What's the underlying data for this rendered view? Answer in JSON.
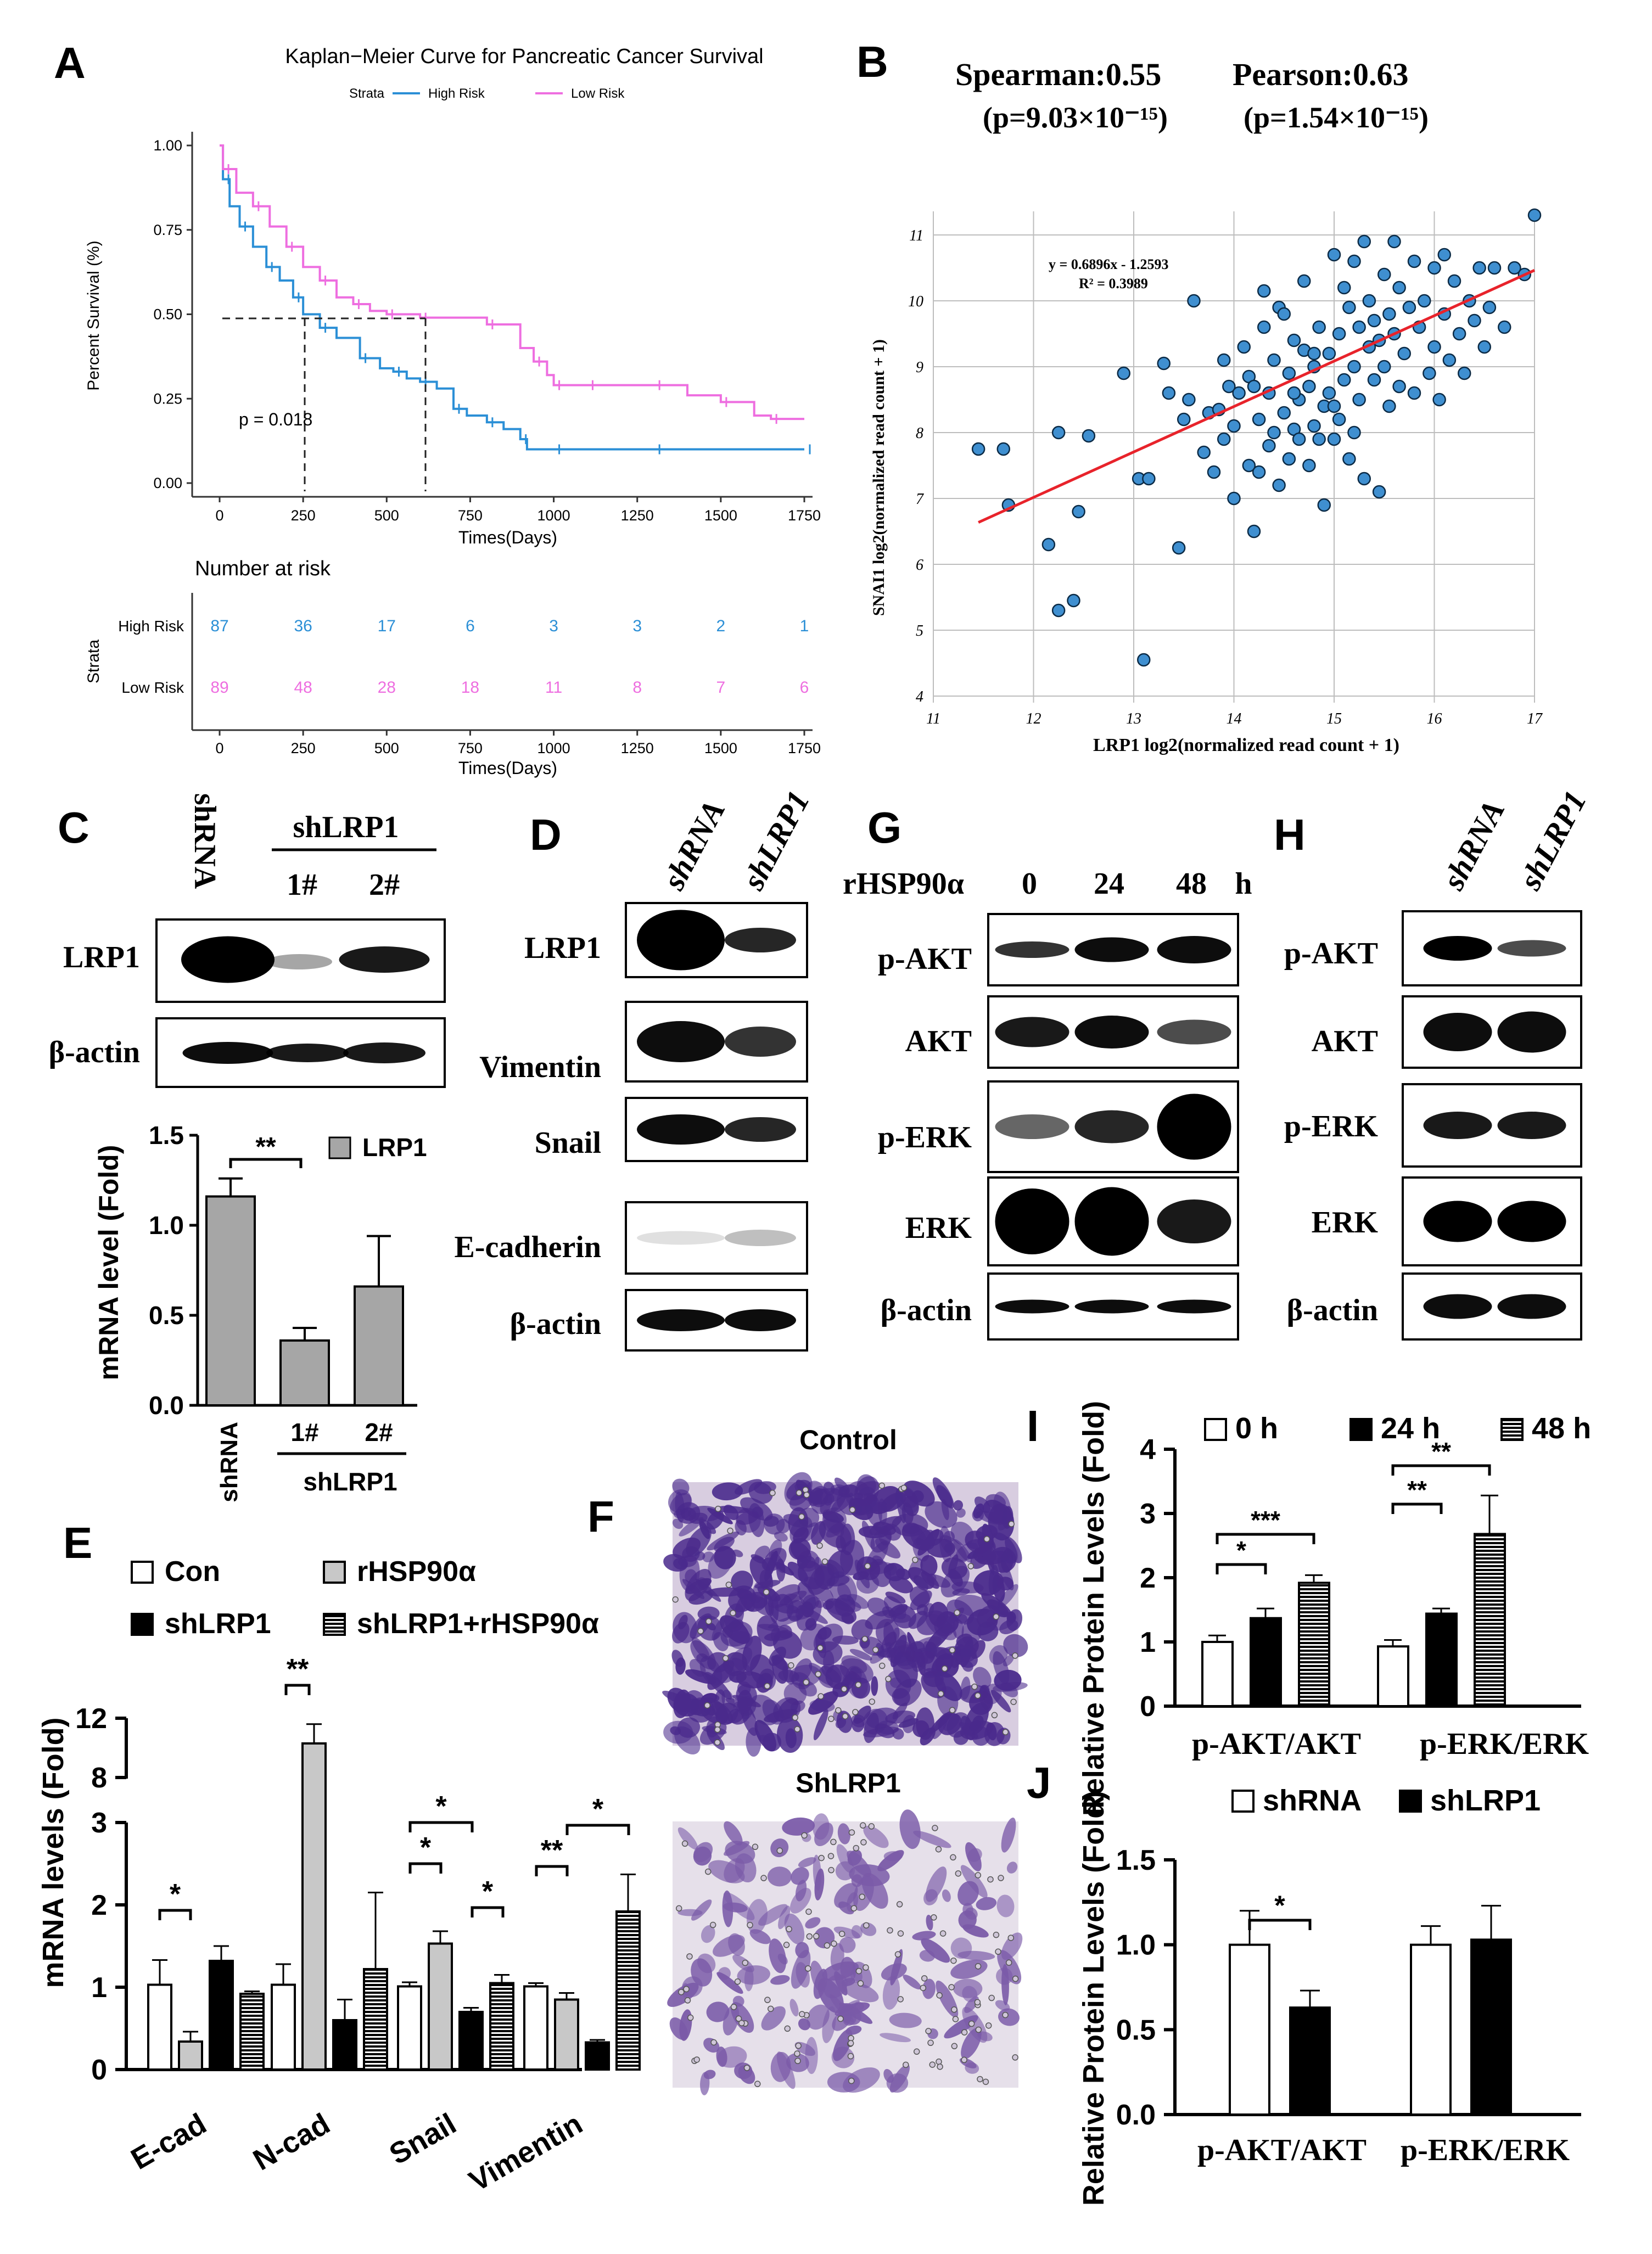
{
  "colors": {
    "high_risk": "#2b8fd6",
    "low_risk": "#ee6ee0",
    "scatter_fill": "#3f8fd0",
    "fit_line": "#e8232b",
    "bar_gray": "#a6a6a6",
    "stain": "#6a3a9a"
  },
  "panels": {
    "A": {
      "letter": "A"
    },
    "B": {
      "letter": "B",
      "spearman": "Spearman:0.55",
      "pearson": "Pearson:0.63",
      "spearman_p": "(p=9.03×10⁻¹⁵)",
      "pearson_p": "(p=1.54×10⁻¹⁵)",
      "equation": "y = 0.6896x - 1.2593",
      "r2": "R² = 0.3989"
    },
    "C": {
      "letter": "C",
      "lane_shrna": "shRNA",
      "group": "shLRP1",
      "lane1": "1#",
      "lane2": "2#",
      "row_lrp1": "LRP1",
      "row_actin": "β-actin"
    },
    "D": {
      "letter": "D",
      "lane_shrna": "shRNA",
      "lane_shlrp1": "shLRP1",
      "rows": [
        "LRP1",
        "Vimentin",
        "Snail",
        "E-cadherin",
        "β-actin"
      ]
    },
    "G": {
      "letter": "G",
      "treat": "rHSP90α",
      "times": [
        "0",
        "24",
        "48"
      ],
      "unit": "h",
      "rows": [
        "p-AKT",
        "AKT",
        "p-ERK",
        "ERK",
        "β-actin"
      ]
    },
    "H": {
      "letter": "H",
      "lane_shrna": "shRNA",
      "lane_shlrp1": "shLRP1",
      "rows": [
        "p-AKT",
        "AKT",
        "p-ERK",
        "ERK",
        "β-actin"
      ]
    },
    "E": {
      "letter": "E"
    },
    "F": {
      "letter": "F",
      "control": "Control",
      "shlrp1": "ShLRP1"
    },
    "I": {
      "letter": "I"
    },
    "J": {
      "letter": "J"
    }
  },
  "chart_data": [
    {
      "id": "A_km",
      "type": "line",
      "title": "Kaplan−Meier Curve for Pancreatic Cancer Survival",
      "legend_title": "Strata",
      "xlabel": "Times(Days)",
      "ylabel": "Percent Survival (%)",
      "xlim": [
        0,
        1750
      ],
      "ylim": [
        0,
        1
      ],
      "xticks": [
        "0",
        "250",
        "500",
        "750",
        "1000",
        "1250",
        "1500",
        "1750"
      ],
      "yticks": [
        "0.00",
        "0.25",
        "0.50",
        "0.75",
        "1.00"
      ],
      "pvalue": "p = 0.018",
      "series": [
        {
          "name": "High Risk",
          "x": [
            0,
            10,
            30,
            60,
            100,
            140,
            180,
            220,
            250,
            300,
            350,
            420,
            480,
            520,
            560,
            600,
            650,
            700,
            740,
            800,
            850,
            900,
            920,
            1000,
            1100,
            1300,
            1500,
            1750
          ],
          "y": [
            1.0,
            0.9,
            0.82,
            0.76,
            0.7,
            0.64,
            0.6,
            0.55,
            0.5,
            0.46,
            0.43,
            0.37,
            0.34,
            0.33,
            0.31,
            0.3,
            0.28,
            0.22,
            0.2,
            0.18,
            0.16,
            0.13,
            0.1,
            0.1,
            0.1,
            0.1,
            0.1,
            0.1
          ]
        },
        {
          "name": "Low Risk",
          "x": [
            0,
            10,
            50,
            100,
            150,
            200,
            250,
            300,
            350,
            400,
            450,
            500,
            550,
            600,
            700,
            800,
            900,
            940,
            980,
            1000,
            1040,
            1100,
            1200,
            1300,
            1400,
            1500,
            1600,
            1650,
            1750
          ],
          "y": [
            1.0,
            0.93,
            0.86,
            0.82,
            0.76,
            0.7,
            0.64,
            0.6,
            0.55,
            0.53,
            0.51,
            0.5,
            0.5,
            0.49,
            0.49,
            0.47,
            0.4,
            0.36,
            0.32,
            0.29,
            0.29,
            0.29,
            0.29,
            0.29,
            0.26,
            0.24,
            0.2,
            0.19,
            0.19
          ]
        }
      ]
    },
    {
      "id": "A_risk",
      "type": "table",
      "title": "Number at risk",
      "row_label": "Strata",
      "xlabel": "Times(Days)",
      "xticks": [
        "0",
        "250",
        "500",
        "750",
        "1000",
        "1250",
        "1500",
        "1750"
      ],
      "rows": [
        {
          "name": "High Risk",
          "values": [
            87,
            36,
            17,
            6,
            3,
            3,
            2,
            1
          ]
        },
        {
          "name": "Low Risk",
          "values": [
            89,
            48,
            28,
            18,
            11,
            8,
            7,
            6
          ]
        }
      ]
    },
    {
      "id": "B_scatter",
      "type": "scatter",
      "xlabel": "LRP1 log2(normalized read count + 1)",
      "ylabel": "SNAI1 log2(normalized read count + 1)",
      "xlim": [
        11,
        17
      ],
      "ylim": [
        4,
        11.5
      ],
      "xticks": [
        "11",
        "12",
        "13",
        "14",
        "15",
        "16",
        "17"
      ],
      "yticks": [
        "4",
        "5",
        "6",
        "7",
        "8",
        "9",
        "10",
        "11"
      ],
      "fit": {
        "slope": 0.6896,
        "intercept": -1.2593
      },
      "points": [
        [
          11.45,
          7.75
        ],
        [
          11.7,
          7.75
        ],
        [
          11.75,
          6.9
        ],
        [
          12.15,
          6.3
        ],
        [
          12.25,
          5.3
        ],
        [
          12.25,
          8.0
        ],
        [
          12.4,
          5.45
        ],
        [
          12.45,
          6.8
        ],
        [
          12.55,
          7.95
        ],
        [
          12.9,
          8.9
        ],
        [
          13.05,
          7.3
        ],
        [
          13.1,
          4.55
        ],
        [
          13.15,
          7.3
        ],
        [
          13.3,
          9.05
        ],
        [
          13.35,
          8.6
        ],
        [
          13.45,
          6.25
        ],
        [
          13.5,
          8.2
        ],
        [
          13.55,
          8.5
        ],
        [
          13.6,
          10.0
        ],
        [
          13.7,
          7.7
        ],
        [
          13.75,
          8.3
        ],
        [
          13.8,
          7.4
        ],
        [
          13.85,
          8.35
        ],
        [
          13.9,
          7.9
        ],
        [
          13.95,
          8.7
        ],
        [
          14.0,
          7.0
        ],
        [
          14.05,
          8.6
        ],
        [
          14.1,
          9.3
        ],
        [
          14.15,
          7.5
        ],
        [
          14.15,
          8.85
        ],
        [
          14.2,
          6.5
        ],
        [
          14.25,
          7.4
        ],
        [
          14.25,
          8.2
        ],
        [
          14.3,
          9.6
        ],
        [
          14.3,
          10.15
        ],
        [
          14.35,
          7.8
        ],
        [
          14.35,
          8.6
        ],
        [
          14.4,
          9.1
        ],
        [
          14.45,
          7.2
        ],
        [
          14.45,
          9.9
        ],
        [
          14.5,
          8.3
        ],
        [
          14.5,
          9.8
        ],
        [
          14.55,
          7.6
        ],
        [
          14.55,
          8.9
        ],
        [
          14.6,
          8.05
        ],
        [
          14.6,
          9.4
        ],
        [
          14.65,
          7.9
        ],
        [
          14.65,
          8.5
        ],
        [
          14.7,
          9.25
        ],
        [
          14.7,
          10.3
        ],
        [
          14.75,
          7.5
        ],
        [
          14.75,
          8.7
        ],
        [
          14.8,
          9.0
        ],
        [
          14.8,
          8.1
        ],
        [
          14.85,
          7.9
        ],
        [
          14.85,
          9.6
        ],
        [
          14.9,
          8.4
        ],
        [
          14.9,
          6.9
        ],
        [
          14.95,
          9.2
        ],
        [
          14.95,
          8.6
        ],
        [
          15.0,
          10.7
        ],
        [
          15.0,
          7.9
        ],
        [
          15.05,
          9.5
        ],
        [
          15.05,
          8.2
        ],
        [
          15.1,
          10.2
        ],
        [
          15.1,
          8.8
        ],
        [
          15.15,
          7.6
        ],
        [
          15.15,
          9.9
        ],
        [
          15.2,
          9.0
        ],
        [
          15.2,
          10.6
        ],
        [
          15.25,
          8.5
        ],
        [
          15.25,
          9.6
        ],
        [
          15.3,
          10.9
        ],
        [
          15.3,
          7.3
        ],
        [
          15.35,
          9.3
        ],
        [
          15.35,
          10.0
        ],
        [
          15.4,
          8.8
        ],
        [
          15.4,
          9.7
        ],
        [
          15.45,
          7.1
        ],
        [
          15.45,
          9.4
        ],
        [
          15.5,
          10.4
        ],
        [
          15.5,
          9.0
        ],
        [
          15.55,
          9.8
        ],
        [
          15.55,
          8.4
        ],
        [
          15.6,
          10.9
        ],
        [
          15.6,
          9.5
        ],
        [
          15.65,
          8.7
        ],
        [
          15.65,
          10.2
        ],
        [
          15.7,
          9.2
        ],
        [
          15.75,
          9.9
        ],
        [
          15.8,
          10.6
        ],
        [
          15.8,
          8.6
        ],
        [
          15.85,
          9.6
        ],
        [
          15.9,
          10.0
        ],
        [
          15.95,
          8.9
        ],
        [
          16.0,
          10.5
        ],
        [
          16.0,
          9.3
        ],
        [
          16.05,
          8.5
        ],
        [
          16.1,
          9.8
        ],
        [
          16.1,
          10.7
        ],
        [
          16.15,
          9.1
        ],
        [
          16.2,
          10.3
        ],
        [
          16.25,
          9.5
        ],
        [
          16.3,
          8.9
        ],
        [
          16.35,
          10.0
        ],
        [
          16.4,
          9.7
        ],
        [
          16.45,
          10.5
        ],
        [
          16.5,
          9.3
        ],
        [
          16.55,
          9.9
        ],
        [
          16.6,
          10.5
        ],
        [
          16.7,
          9.6
        ],
        [
          16.8,
          10.5
        ],
        [
          16.9,
          10.4
        ],
        [
          17.0,
          11.3
        ],
        [
          14.0,
          8.1
        ],
        [
          14.2,
          8.7
        ],
        [
          13.9,
          9.1
        ],
        [
          14.4,
          8.0
        ],
        [
          14.6,
          8.6
        ],
        [
          15.0,
          8.4
        ],
        [
          15.2,
          8.0
        ],
        [
          14.8,
          9.2
        ]
      ]
    },
    {
      "id": "C_bar",
      "type": "bar",
      "ylabel": "mRNA level (Fold)",
      "legend": "LRP1",
      "ylim": [
        0,
        1.5
      ],
      "yticks": [
        "0.0",
        "0.5",
        "1.0",
        "1.5"
      ],
      "categories": [
        "shRNA",
        "1#",
        "2#"
      ],
      "group_label": "shLRP1",
      "values": [
        1.16,
        0.36,
        0.66
      ],
      "errors": [
        0.1,
        0.07,
        0.28
      ],
      "sig": [
        {
          "from": 0,
          "to": 1,
          "label": "**"
        }
      ]
    },
    {
      "id": "E_bar",
      "type": "bar",
      "ylabel": "mRNA levels (Fold)",
      "categories": [
        "E-cad",
        "N-cad",
        "Snail",
        "Vimentin"
      ],
      "yticks_low": [
        "0",
        "1",
        "2",
        "3"
      ],
      "yticks_high": [
        "8",
        "12"
      ],
      "series": [
        {
          "name": "Con",
          "values": [
            1.03,
            1.03,
            1.01,
            1.01
          ],
          "errors": [
            0.3,
            0.25,
            0.05,
            0.04
          ]
        },
        {
          "name": "rHSP90α",
          "values": [
            0.34,
            10.3,
            1.53,
            0.85
          ],
          "errors": [
            0.12,
            1.3,
            0.15,
            0.08
          ]
        },
        {
          "name": "shLRP1",
          "values": [
            1.32,
            0.6,
            0.7,
            0.33
          ],
          "errors": [
            0.18,
            0.25,
            0.05,
            0.03
          ]
        },
        {
          "name": "shLRP1+rHSP90α",
          "values": [
            0.92,
            1.22,
            1.05,
            1.92
          ],
          "errors": [
            0.03,
            0.93,
            0.1,
            0.45
          ]
        }
      ],
      "sig": [
        "*",
        "**",
        "*",
        "*",
        "*",
        "**",
        "*"
      ]
    },
    {
      "id": "I_bar",
      "type": "bar",
      "ylabel": "Relative Protein Levels (Fold)",
      "categories": [
        "p-AKT/AKT",
        "p-ERK/ERK"
      ],
      "ylim": [
        0,
        4
      ],
      "yticks": [
        "0",
        "1",
        "2",
        "3",
        "4"
      ],
      "series": [
        {
          "name": "0 h",
          "values": [
            1.0,
            0.93
          ],
          "errors": [
            0.1,
            0.1
          ]
        },
        {
          "name": "24 h",
          "values": [
            1.37,
            1.44
          ],
          "errors": [
            0.15,
            0.08
          ]
        },
        {
          "name": "48 h",
          "values": [
            1.92,
            2.68
          ],
          "errors": [
            0.12,
            0.6
          ]
        }
      ],
      "sig": [
        "*",
        "***",
        "**",
        "**"
      ]
    },
    {
      "id": "J_bar",
      "type": "bar",
      "ylabel": "Relative Protein Levels (Fold)",
      "categories": [
        "p-AKT/AKT",
        "p-ERK/ERK"
      ],
      "ylim": [
        0,
        1.5
      ],
      "yticks": [
        "0.0",
        "0.5",
        "1.0",
        "1.5"
      ],
      "series": [
        {
          "name": "shRNA",
          "values": [
            1.0,
            1.0
          ],
          "errors": [
            0.2,
            0.11
          ]
        },
        {
          "name": "shLRP1",
          "values": [
            0.63,
            1.03
          ],
          "errors": [
            0.1,
            0.2
          ]
        }
      ],
      "sig": [
        "*"
      ]
    }
  ]
}
